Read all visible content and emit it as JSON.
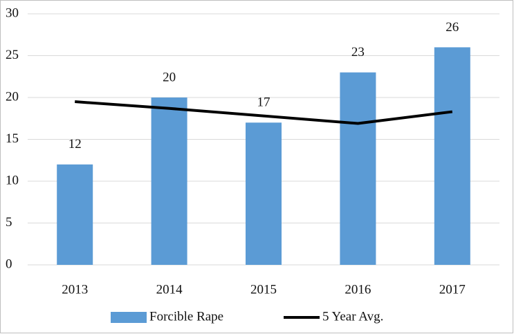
{
  "chart_data": {
    "type": "bar",
    "categories": [
      "2013",
      "2014",
      "2015",
      "2016",
      "2017"
    ],
    "series": [
      {
        "name": "Forcible Rape",
        "type": "bar",
        "color": "#5b9bd5",
        "values": [
          12,
          20,
          17,
          23,
          26
        ],
        "data_labels": true
      },
      {
        "name": "5 Year Avg.",
        "type": "line",
        "color": "#000000",
        "values": [
          19.5,
          18.7,
          17.8,
          16.9,
          18.3
        ]
      }
    ],
    "ylim": [
      0,
      30
    ],
    "yticks": [
      0,
      5,
      10,
      15,
      20,
      25,
      30
    ],
    "grid": true,
    "legend": "bottom"
  }
}
